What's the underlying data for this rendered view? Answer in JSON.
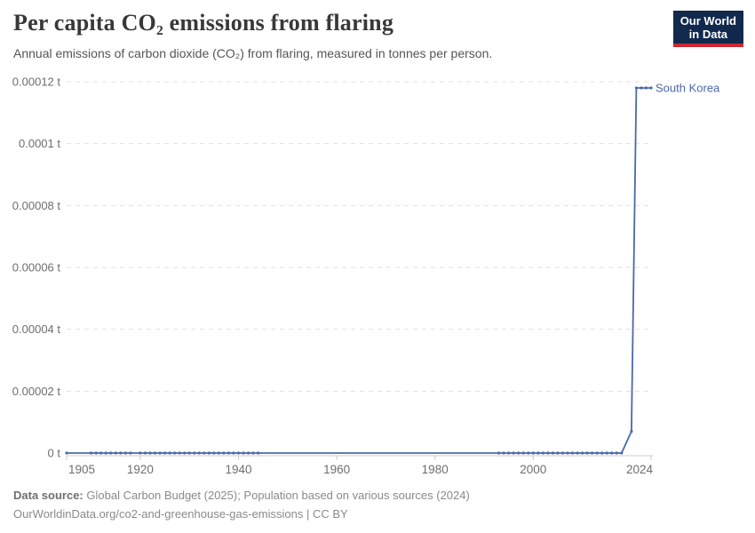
{
  "header": {
    "title": "Per capita CO₂ emissions from flaring",
    "subtitle": "Annual emissions of carbon dioxide (CO₂) from flaring, measured in tonnes per person."
  },
  "logo": {
    "line1": "Our World",
    "line2": "in Data"
  },
  "footer": {
    "datasource_label": "Data source:",
    "datasource": "Global Carbon Budget (2025); Population based on various sources (2024)",
    "link_line": "OurWorldinData.org/co2-and-greenhouse-gas-emissions | CC BY"
  },
  "colors": {
    "line": "#4a69a8",
    "series_label": "#4a69a8",
    "grid": "#e0e0e0",
    "axis": "#cccccc",
    "tick_label": "#6e6e6e",
    "logo_bg": "#12294e",
    "logo_accent": "#cf2732"
  },
  "chart_data": {
    "type": "line",
    "title": "Per capita CO₂ emissions from flaring",
    "subtitle": "Annual emissions of carbon dioxide (CO₂) from flaring, measured in tonnes per person.",
    "unit": "t",
    "grid": true,
    "legend_position": "end-of-line",
    "x_axis": {
      "min": 1905,
      "max": 2024,
      "ticks": [
        1905,
        1920,
        1940,
        1960,
        1980,
        2000,
        2024
      ]
    },
    "y_axis": {
      "min": 0,
      "max": 0.00012,
      "ticks": [
        {
          "value": 0,
          "label": "0 t"
        },
        {
          "value": 2e-05,
          "label": "0.00002 t"
        },
        {
          "value": 4e-05,
          "label": "0.00004 t"
        },
        {
          "value": 6e-05,
          "label": "0.00006 t"
        },
        {
          "value": 8e-05,
          "label": "0.00008 t"
        },
        {
          "value": 0.0001,
          "label": "0.0001 t"
        },
        {
          "value": 0.00012,
          "label": "0.00012 t"
        }
      ]
    },
    "series": [
      {
        "name": "South Korea",
        "x": [
          1905,
          1910,
          1911,
          1912,
          1913,
          1914,
          1915,
          1916,
          1917,
          1918,
          1920,
          1921,
          1922,
          1923,
          1924,
          1925,
          1926,
          1927,
          1928,
          1929,
          1930,
          1931,
          1932,
          1933,
          1934,
          1935,
          1936,
          1937,
          1938,
          1939,
          1940,
          1941,
          1942,
          1943,
          1944,
          1993,
          1994,
          1995,
          1996,
          1997,
          1998,
          1999,
          2000,
          2001,
          2002,
          2003,
          2004,
          2005,
          2006,
          2007,
          2008,
          2009,
          2010,
          2011,
          2012,
          2013,
          2014,
          2015,
          2016,
          2017,
          2018,
          2020,
          2021,
          2022,
          2023,
          2024
        ],
        "values": [
          0,
          0,
          0,
          0,
          0,
          0,
          0,
          0,
          0,
          0,
          0,
          0,
          0,
          0,
          0,
          0,
          0,
          0,
          0,
          0,
          0,
          0,
          0,
          0,
          0,
          0,
          0,
          0,
          0,
          0,
          0,
          0,
          0,
          0,
          0,
          0,
          0,
          0,
          0,
          0,
          0,
          0,
          0,
          0,
          0,
          0,
          0,
          0,
          0,
          0,
          0,
          0,
          0,
          0,
          0,
          0,
          0,
          0,
          0,
          0,
          0,
          7e-06,
          0.000118,
          0.000118,
          0.000118,
          0.000118
        ]
      }
    ]
  }
}
